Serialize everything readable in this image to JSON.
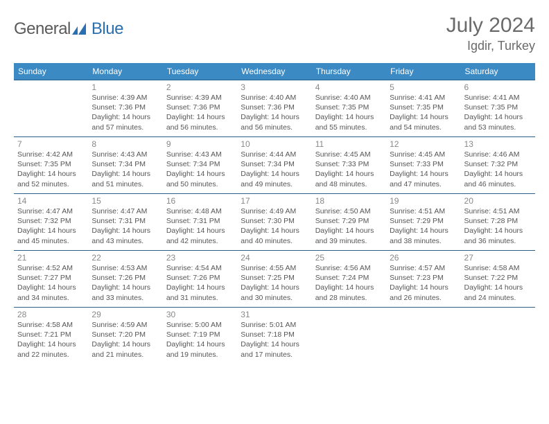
{
  "logo": {
    "text1": "General",
    "text2": "Blue"
  },
  "title": "July 2024",
  "subtitle": "Igdir, Turkey",
  "colors": {
    "header_bg": "#3b8ac4",
    "header_text": "#ffffff",
    "row_border": "#2a5d87",
    "daynum": "#888888",
    "body_text": "#555555",
    "logo_gray": "#5a5a5a",
    "logo_blue": "#2a6fb0"
  },
  "weekdays": [
    "Sunday",
    "Monday",
    "Tuesday",
    "Wednesday",
    "Thursday",
    "Friday",
    "Saturday"
  ],
  "days": [
    {
      "n": 1,
      "sr": "4:39 AM",
      "ss": "7:36 PM",
      "dl": "14 hours and 57 minutes."
    },
    {
      "n": 2,
      "sr": "4:39 AM",
      "ss": "7:36 PM",
      "dl": "14 hours and 56 minutes."
    },
    {
      "n": 3,
      "sr": "4:40 AM",
      "ss": "7:36 PM",
      "dl": "14 hours and 56 minutes."
    },
    {
      "n": 4,
      "sr": "4:40 AM",
      "ss": "7:35 PM",
      "dl": "14 hours and 55 minutes."
    },
    {
      "n": 5,
      "sr": "4:41 AM",
      "ss": "7:35 PM",
      "dl": "14 hours and 54 minutes."
    },
    {
      "n": 6,
      "sr": "4:41 AM",
      "ss": "7:35 PM",
      "dl": "14 hours and 53 minutes."
    },
    {
      "n": 7,
      "sr": "4:42 AM",
      "ss": "7:35 PM",
      "dl": "14 hours and 52 minutes."
    },
    {
      "n": 8,
      "sr": "4:43 AM",
      "ss": "7:34 PM",
      "dl": "14 hours and 51 minutes."
    },
    {
      "n": 9,
      "sr": "4:43 AM",
      "ss": "7:34 PM",
      "dl": "14 hours and 50 minutes."
    },
    {
      "n": 10,
      "sr": "4:44 AM",
      "ss": "7:34 PM",
      "dl": "14 hours and 49 minutes."
    },
    {
      "n": 11,
      "sr": "4:45 AM",
      "ss": "7:33 PM",
      "dl": "14 hours and 48 minutes."
    },
    {
      "n": 12,
      "sr": "4:45 AM",
      "ss": "7:33 PM",
      "dl": "14 hours and 47 minutes."
    },
    {
      "n": 13,
      "sr": "4:46 AM",
      "ss": "7:32 PM",
      "dl": "14 hours and 46 minutes."
    },
    {
      "n": 14,
      "sr": "4:47 AM",
      "ss": "7:32 PM",
      "dl": "14 hours and 45 minutes."
    },
    {
      "n": 15,
      "sr": "4:47 AM",
      "ss": "7:31 PM",
      "dl": "14 hours and 43 minutes."
    },
    {
      "n": 16,
      "sr": "4:48 AM",
      "ss": "7:31 PM",
      "dl": "14 hours and 42 minutes."
    },
    {
      "n": 17,
      "sr": "4:49 AM",
      "ss": "7:30 PM",
      "dl": "14 hours and 40 minutes."
    },
    {
      "n": 18,
      "sr": "4:50 AM",
      "ss": "7:29 PM",
      "dl": "14 hours and 39 minutes."
    },
    {
      "n": 19,
      "sr": "4:51 AM",
      "ss": "7:29 PM",
      "dl": "14 hours and 38 minutes."
    },
    {
      "n": 20,
      "sr": "4:51 AM",
      "ss": "7:28 PM",
      "dl": "14 hours and 36 minutes."
    },
    {
      "n": 21,
      "sr": "4:52 AM",
      "ss": "7:27 PM",
      "dl": "14 hours and 34 minutes."
    },
    {
      "n": 22,
      "sr": "4:53 AM",
      "ss": "7:26 PM",
      "dl": "14 hours and 33 minutes."
    },
    {
      "n": 23,
      "sr": "4:54 AM",
      "ss": "7:26 PM",
      "dl": "14 hours and 31 minutes."
    },
    {
      "n": 24,
      "sr": "4:55 AM",
      "ss": "7:25 PM",
      "dl": "14 hours and 30 minutes."
    },
    {
      "n": 25,
      "sr": "4:56 AM",
      "ss": "7:24 PM",
      "dl": "14 hours and 28 minutes."
    },
    {
      "n": 26,
      "sr": "4:57 AM",
      "ss": "7:23 PM",
      "dl": "14 hours and 26 minutes."
    },
    {
      "n": 27,
      "sr": "4:58 AM",
      "ss": "7:22 PM",
      "dl": "14 hours and 24 minutes."
    },
    {
      "n": 28,
      "sr": "4:58 AM",
      "ss": "7:21 PM",
      "dl": "14 hours and 22 minutes."
    },
    {
      "n": 29,
      "sr": "4:59 AM",
      "ss": "7:20 PM",
      "dl": "14 hours and 21 minutes."
    },
    {
      "n": 30,
      "sr": "5:00 AM",
      "ss": "7:19 PM",
      "dl": "14 hours and 19 minutes."
    },
    {
      "n": 31,
      "sr": "5:01 AM",
      "ss": "7:18 PM",
      "dl": "14 hours and 17 minutes."
    }
  ],
  "first_day_offset": 1,
  "labels": {
    "sunrise": "Sunrise:",
    "sunset": "Sunset:",
    "daylight": "Daylight:"
  }
}
